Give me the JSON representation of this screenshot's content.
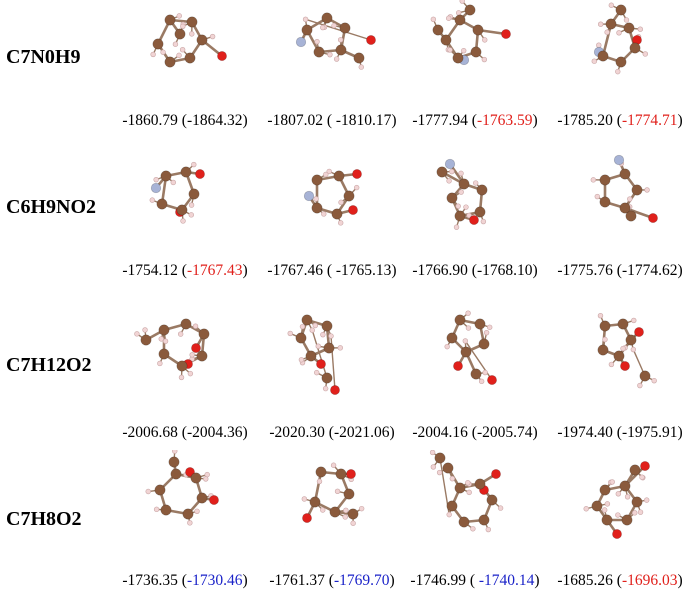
{
  "colors": {
    "carbon": "#8a5a3c",
    "hydrogen": "#f1d4d4",
    "oxygen": "#e0201b",
    "nitrogen": "#a7b3d6",
    "bond": "#9a7a64",
    "red_value": "#e0201b",
    "blue_value": "#1a22c8"
  },
  "rows": [
    {
      "formula": "C7N0H9",
      "cells": [
        {
          "e1": "-1860.79",
          "e2": "-1864.32",
          "color": "black"
        },
        {
          "e1": "-1807.02",
          "e2": " -1810.17",
          "color": "black"
        },
        {
          "e1": "-1777.94",
          "e2": "-1763.59",
          "color": "red"
        },
        {
          "e1": "-1785.20",
          "e2": "-1774.71",
          "color": "red"
        }
      ]
    },
    {
      "formula": "C6H9NO2",
      "cells": [
        {
          "e1": "-1754.12",
          "e2": "-1767.43",
          "color": "red"
        },
        {
          "e1": "-1767.46",
          "e2": " -1765.13",
          "color": "black"
        },
        {
          "e1": "-1766.90",
          "e2": "-1768.10",
          "color": "black"
        },
        {
          "e1": "-1775.76",
          "e2": "-1774.62",
          "color": "black"
        }
      ]
    },
    {
      "formula": "C7H12O2",
      "cells": [
        {
          "e1": "-2006.68",
          "e2": "-2004.36",
          "color": "black"
        },
        {
          "e1": "-2020.30",
          "e2": "-2021.06",
          "color": "black"
        },
        {
          "e1": "-2004.16",
          "e2": "-2005.74",
          "color": "black"
        },
        {
          "e1": "-1974.40",
          "e2": "-1975.91",
          "color": "black"
        }
      ]
    },
    {
      "formula": "C7H8O2",
      "cells": [
        {
          "e1": "-1736.35",
          "e2": "-1730.46",
          "color": "blue"
        },
        {
          "e1": "-1761.37",
          "e2": "-1769.70",
          "color": "blue"
        },
        {
          "e1": "-1746.99",
          "e2": " -1740.14",
          "color": "blue"
        },
        {
          "e1": "-1685.26",
          "e2": "-1696.03",
          "color": "red"
        }
      ]
    }
  ]
}
